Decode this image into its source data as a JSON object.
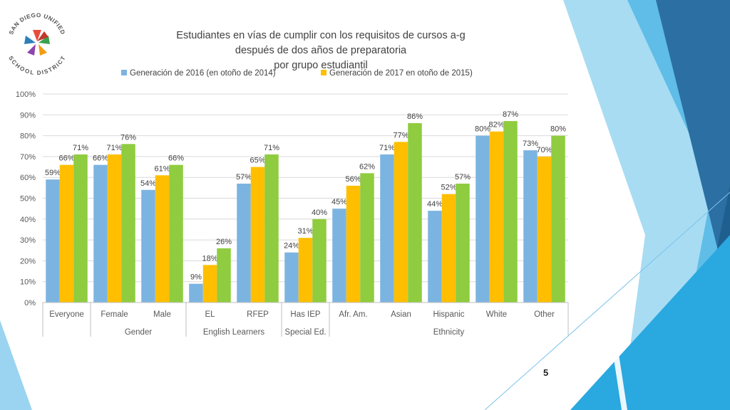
{
  "slide": {
    "page_number": "5"
  },
  "logo": {
    "arc_top": "SAN DIEGO UNIFIED",
    "arc_bottom": "SCHOOL DISTRICT"
  },
  "colors": {
    "blue": "#7cb4e1",
    "yellow": "#ffbf00",
    "green": "#8fcc3f",
    "accent_dark": "#1f5f8f",
    "accent_light": "#9ad4f0"
  },
  "chart_data": {
    "type": "bar",
    "title_lines": [
      "Estudiantes en vías de cumplir con los requisitos de cursos a-g",
      "después de dos años de preparatoria",
      "por grupo estudiantil"
    ],
    "categories": [
      "Everyone",
      "Female",
      "Male",
      "EL",
      "RFEP",
      "Has IEP",
      "Afr. Am.",
      "Asian",
      "Hispanic",
      "White",
      "Other"
    ],
    "groups": [
      {
        "label": "",
        "span": 1
      },
      {
        "label": "Gender",
        "span": 2
      },
      {
        "label": "English Learners",
        "span": 2
      },
      {
        "label": "Special Ed.",
        "span": 1
      },
      {
        "label": "Ethnicity",
        "span": 5
      }
    ],
    "series": [
      {
        "name": "Generación de 2016 (en otoño de 2014)",
        "color": "#7cb4e1",
        "values": [
          59,
          66,
          54,
          9,
          57,
          24,
          45,
          71,
          44,
          80,
          73
        ]
      },
      {
        "name": "Generación de 2017 en otoño de 2015)",
        "color": "#ffbf00",
        "values": [
          66,
          71,
          61,
          18,
          65,
          31,
          56,
          77,
          52,
          82,
          70
        ]
      },
      {
        "name": "",
        "color": "#8fcc3f",
        "values": [
          71,
          76,
          66,
          26,
          71,
          40,
          62,
          86,
          57,
          87,
          80
        ]
      }
    ],
    "ylim": [
      0,
      100
    ],
    "yticks": [
      0,
      10,
      20,
      30,
      40,
      50,
      60,
      70,
      80,
      90,
      100
    ],
    "ytick_labels": [
      "0%",
      "10%",
      "20%",
      "30%",
      "40%",
      "50%",
      "60%",
      "70%",
      "80%",
      "90%",
      "100%"
    ],
    "value_suffix": "%",
    "grid": true,
    "legend_position": "top"
  }
}
